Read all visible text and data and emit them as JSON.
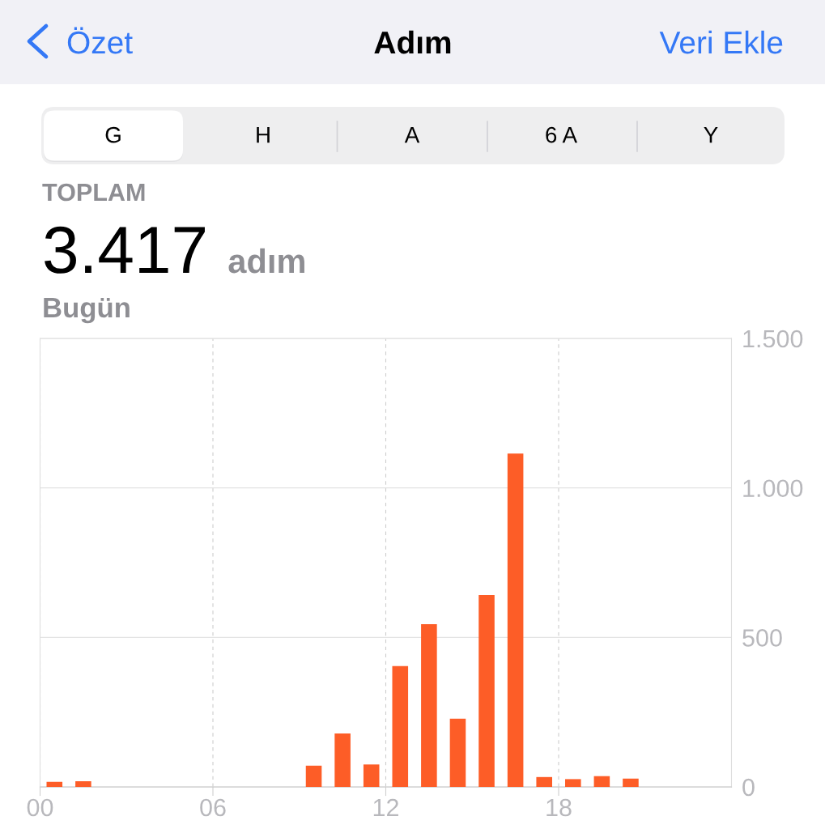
{
  "chart_data": {
    "type": "bar",
    "title": "Adım",
    "annotations": [
      "Özet",
      "Veri Ekle",
      "G",
      "H",
      "A",
      "6 A",
      "Y",
      "TOPLAM",
      "3.417",
      "adım",
      "Bugün"
    ],
    "x": [
      0.5,
      1.5,
      9.5,
      10.5,
      11.5,
      12.5,
      13.5,
      14.5,
      15.5,
      16.5,
      17.5,
      18.5,
      19.5,
      20.5
    ],
    "values": [
      17,
      19,
      71,
      179,
      75,
      404,
      544,
      228,
      642,
      1115,
      33,
      26,
      36,
      28
    ],
    "color": "#fd5d27",
    "xlim": [
      0,
      24
    ],
    "xticks": [
      {
        "value": 0,
        "label": "00"
      },
      {
        "value": 6,
        "label": "06"
      },
      {
        "value": 12,
        "label": "12"
      },
      {
        "value": 18,
        "label": "18"
      }
    ],
    "ylim": [
      0,
      1500
    ],
    "yticks": [
      0,
      500,
      {
        "value": 1000,
        "label": "1.000"
      },
      {
        "value": 1500,
        "label": "1.500"
      }
    ],
    "grid": true
  }
}
